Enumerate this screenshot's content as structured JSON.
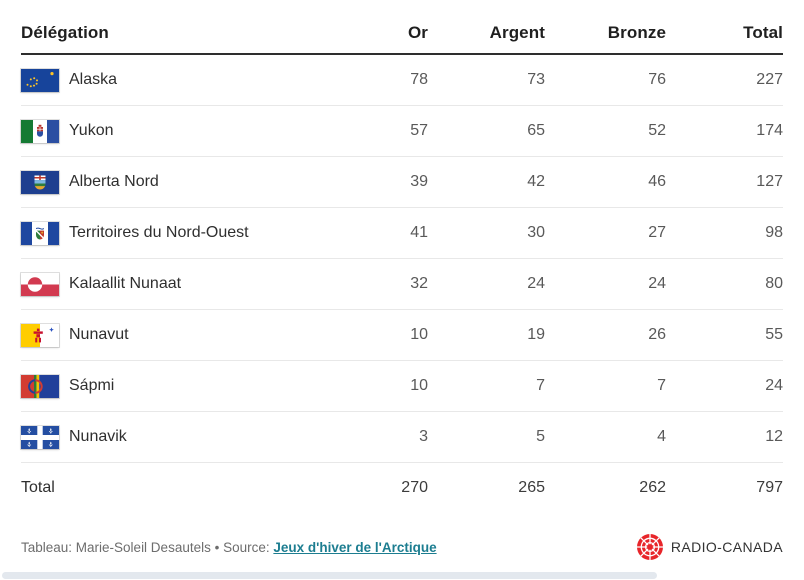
{
  "table": {
    "header": {
      "delegation": "Délégation",
      "or": "Or",
      "argent": "Argent",
      "bronze": "Bronze",
      "total": "Total"
    },
    "rows": [
      {
        "flag": "alaska",
        "name": "Alaska",
        "or": "78",
        "argent": "73",
        "bronze": "76",
        "total": "227"
      },
      {
        "flag": "yukon",
        "name": "Yukon",
        "or": "57",
        "argent": "65",
        "bronze": "52",
        "total": "174"
      },
      {
        "flag": "alberta-nord",
        "name": "Alberta Nord",
        "or": "39",
        "argent": "42",
        "bronze": "46",
        "total": "127"
      },
      {
        "flag": "territoires-du-nord-ouest",
        "name": "Territoires du Nord-Ouest",
        "or": "41",
        "argent": "30",
        "bronze": "27",
        "total": "98"
      },
      {
        "flag": "kalaallit-nunaat",
        "name": "Kalaallit Nunaat",
        "or": "32",
        "argent": "24",
        "bronze": "24",
        "total": "80"
      },
      {
        "flag": "nunavut",
        "name": "Nunavut",
        "or": "10",
        "argent": "19",
        "bronze": "26",
        "total": "55"
      },
      {
        "flag": "sapmi",
        "name": "Sápmi",
        "or": "10",
        "argent": "7",
        "bronze": "7",
        "total": "24"
      },
      {
        "flag": "nunavik",
        "name": "Nunavik",
        "or": "3",
        "argent": "5",
        "bronze": "4",
        "total": "12"
      }
    ],
    "total_row": {
      "label": "Total",
      "or": "270",
      "argent": "265",
      "bronze": "262",
      "total": "797"
    }
  },
  "chart_data": {
    "type": "table",
    "columns": [
      "Délégation",
      "Or",
      "Argent",
      "Bronze",
      "Total"
    ],
    "rows": [
      [
        "Alaska",
        78,
        73,
        76,
        227
      ],
      [
        "Yukon",
        57,
        65,
        52,
        174
      ],
      [
        "Alberta Nord",
        39,
        42,
        46,
        127
      ],
      [
        "Territoires du Nord-Ouest",
        41,
        30,
        27,
        98
      ],
      [
        "Kalaallit Nunaat",
        32,
        24,
        24,
        80
      ],
      [
        "Nunavut",
        10,
        19,
        26,
        55
      ],
      [
        "Sápmi",
        10,
        7,
        7,
        24
      ],
      [
        "Nunavik",
        3,
        5,
        4,
        12
      ]
    ],
    "totals_row": [
      "Total",
      270,
      265,
      262,
      797
    ]
  },
  "footer": {
    "credit_prefix": "Tableau: Marie-Soleil Desautels • Source: ",
    "source_link_label": "Jeux d'hiver de l'Arctique"
  },
  "branding": {
    "wordmark": "RADIO-CANADA"
  },
  "colors": {
    "link_teal": "#1c7d90",
    "header_rule": "#2e2e2e",
    "row_rule": "#e8e8e8",
    "logo_red": "#e8252a"
  }
}
